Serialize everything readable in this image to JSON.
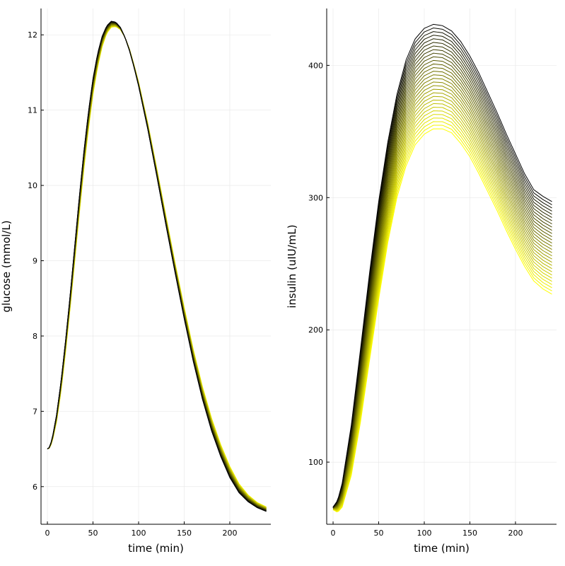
{
  "chart_data": [
    {
      "type": "line",
      "xlabel": "time (min)",
      "ylabel": "glucose (mmol/L)",
      "xlim": [
        -7,
        245
      ],
      "ylim": [
        5.5,
        12.35
      ],
      "xticks": [
        0,
        50,
        100,
        150,
        200
      ],
      "yticks": [
        6,
        7,
        8,
        9,
        10,
        11,
        12
      ],
      "grid": true,
      "legend": "none",
      "series_count": 30,
      "color_gradient": [
        "#000000",
        "#ffff00"
      ],
      "family": {
        "first": {
          "x": [
            0,
            2,
            5,
            10,
            15,
            20,
            25,
            30,
            35,
            40,
            45,
            50,
            55,
            60,
            65,
            70,
            75,
            80,
            85,
            90,
            95,
            100,
            110,
            120,
            130,
            140,
            150,
            160,
            170,
            180,
            190,
            200,
            210,
            220,
            230,
            240
          ],
          "y": [
            6.5,
            6.52,
            6.62,
            6.95,
            7.4,
            7.95,
            8.55,
            9.2,
            9.85,
            10.45,
            10.98,
            11.42,
            11.75,
            11.98,
            12.12,
            12.18,
            12.17,
            12.1,
            11.97,
            11.79,
            11.57,
            11.32,
            10.75,
            10.12,
            9.47,
            8.84,
            8.23,
            7.66,
            7.16,
            6.74,
            6.4,
            6.12,
            5.92,
            5.8,
            5.72,
            5.67
          ]
        },
        "last": {
          "x": [
            0,
            2,
            5,
            10,
            15,
            20,
            25,
            30,
            35,
            40,
            45,
            50,
            55,
            60,
            65,
            70,
            75,
            80,
            85,
            90,
            95,
            100,
            110,
            120,
            130,
            140,
            150,
            160,
            170,
            180,
            190,
            200,
            210,
            220,
            230,
            240
          ],
          "y": [
            6.5,
            6.51,
            6.58,
            6.86,
            7.27,
            7.8,
            8.38,
            9.0,
            9.63,
            10.22,
            10.75,
            11.21,
            11.57,
            11.84,
            12.02,
            12.1,
            12.11,
            12.07,
            11.97,
            11.81,
            11.6,
            11.37,
            10.83,
            10.22,
            9.59,
            8.97,
            8.38,
            7.82,
            7.33,
            6.91,
            6.56,
            6.27,
            6.04,
            5.89,
            5.79,
            5.73
          ]
        }
      }
    },
    {
      "type": "line",
      "xlabel": "time (min)",
      "ylabel": "insulin (uIU/mL)",
      "xlim": [
        -7,
        245
      ],
      "ylim": [
        53,
        443
      ],
      "xticks": [
        0,
        50,
        100,
        150,
        200
      ],
      "yticks": [
        100,
        200,
        300,
        400
      ],
      "grid": true,
      "legend": "none",
      "series_count": 30,
      "color_gradient": [
        "#000000",
        "#ffff00"
      ],
      "family": {
        "first": {
          "x": [
            0,
            5,
            10,
            20,
            30,
            40,
            50,
            60,
            70,
            80,
            90,
            100,
            110,
            120,
            130,
            140,
            150,
            160,
            170,
            180,
            190,
            200,
            210,
            220,
            230,
            240
          ],
          "y": [
            66,
            71,
            84,
            128,
            185,
            243,
            297,
            342,
            378,
            404,
            420,
            428,
            431,
            430,
            426,
            418,
            407,
            394,
            379,
            364,
            348,
            333,
            318,
            306,
            301,
            297
          ]
        },
        "last": {
          "x": [
            0,
            5,
            10,
            20,
            30,
            40,
            50,
            60,
            70,
            80,
            90,
            100,
            110,
            120,
            130,
            140,
            150,
            160,
            170,
            180,
            190,
            200,
            210,
            220,
            230,
            240
          ],
          "y": [
            64,
            62,
            66,
            90,
            130,
            177,
            223,
            266,
            300,
            324,
            340,
            348,
            352,
            352,
            349,
            341,
            331,
            318,
            304,
            290,
            275,
            261,
            248,
            237,
            231,
            227
          ]
        }
      }
    }
  ]
}
